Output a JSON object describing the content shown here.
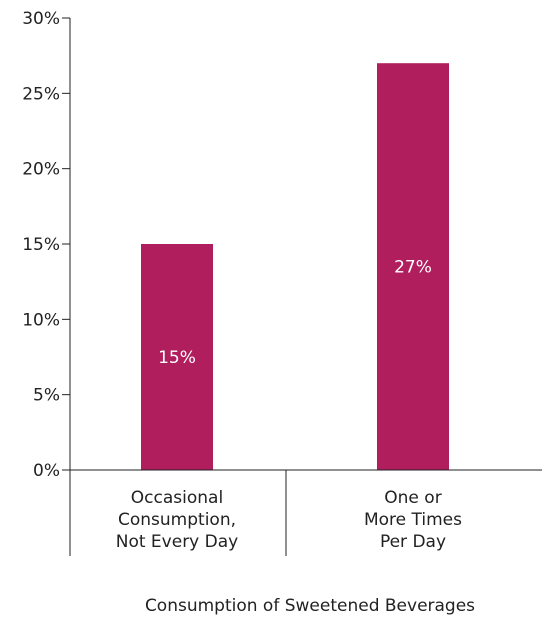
{
  "chart_data": {
    "type": "bar",
    "categories": [
      [
        "Occasional",
        "Consumption,",
        "Not Every Day"
      ],
      [
        "One or",
        "More Times",
        "Per Day"
      ]
    ],
    "values": [
      15,
      27
    ],
    "data_labels": [
      "15%",
      "27%"
    ],
    "xlabel": "Consumption of Sweetened Beverages",
    "ylabel": "",
    "ylim": [
      0,
      30
    ],
    "yticks": [
      0,
      5,
      10,
      15,
      20,
      25,
      30
    ],
    "ytick_labels": [
      "0%",
      "5%",
      "10%",
      "15%",
      "20%",
      "25%",
      "30%"
    ],
    "grid": false,
    "bar_color": "#b01e5e"
  }
}
